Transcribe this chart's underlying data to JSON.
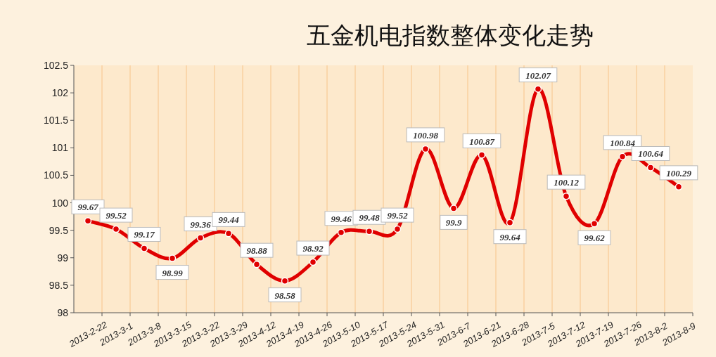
{
  "chart_data": {
    "type": "line",
    "title": "五金机电指数整体变化走势",
    "categories": [
      "2013-2-22",
      "2013-3-1",
      "2013-3-8",
      "2013-3-15",
      "2013-3-22",
      "2013-3-29",
      "2013-4-12",
      "2013-4-19",
      "2013-4-26",
      "2013-5-10",
      "2013-5-17",
      "2013-5-24",
      "2013-5-31",
      "2013-6-7",
      "2013-6-21",
      "2013-6-28",
      "2013-7-5",
      "2013-7-12",
      "2013-7-19",
      "2013-7-26",
      "2013-8-2",
      "2013-8-9"
    ],
    "series": [
      {
        "color": "#e00000",
        "values": [
          99.67,
          99.52,
          99.17,
          98.99,
          99.36,
          99.44,
          98.88,
          98.58,
          98.92,
          99.46,
          99.48,
          99.52,
          100.98,
          99.9,
          100.87,
          99.64,
          102.07,
          100.12,
          99.62,
          100.84,
          100.64,
          100.29
        ]
      }
    ],
    "ylim": [
      98,
      102.5
    ],
    "yticks": [
      98,
      98.5,
      99,
      99.5,
      100,
      100.5,
      101,
      101.5,
      102,
      102.5
    ],
    "grid": "x",
    "data_labels": true,
    "marker": "circle",
    "line_style": "solid"
  }
}
